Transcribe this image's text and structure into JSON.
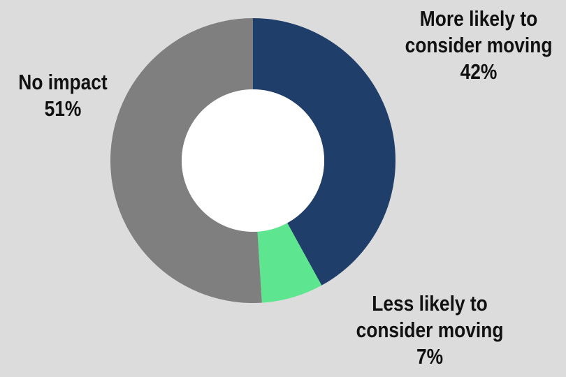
{
  "chart_data": {
    "type": "pie",
    "variant": "donut",
    "start_angle_deg": 0,
    "direction": "clockwise",
    "slices": [
      {
        "label_line1": "More likely to",
        "label_line2": "consider moving",
        "value": 42,
        "value_text": "42%",
        "color": "#1f3e69"
      },
      {
        "label_line1": "Less likely to",
        "label_line2": "consider moving",
        "value": 7,
        "value_text": "7%",
        "color": "#5ee58f"
      },
      {
        "label_line1": "No impact",
        "label_line2": "",
        "value": 51,
        "value_text": "51%",
        "color": "#7f7f7f"
      }
    ]
  },
  "colors": {
    "background": "#dcdcdc",
    "donut_hole": "#ffffff"
  }
}
